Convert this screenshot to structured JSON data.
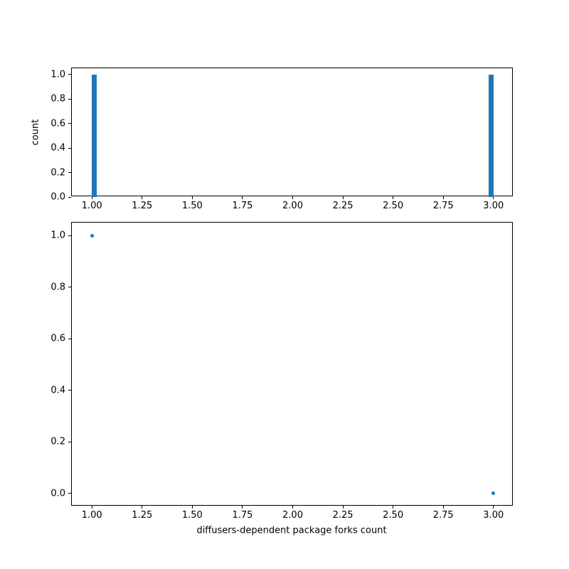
{
  "figure": {
    "background": "#ffffff",
    "accent_color": "#1f77b4"
  },
  "chart_data": [
    {
      "type": "bar",
      "title": "",
      "xlabel": "",
      "ylabel": "count",
      "xlim": [
        0.9,
        3.1
      ],
      "ylim": [
        0,
        1.05
      ],
      "grid": false,
      "legend": null,
      "xticks": [
        1.0,
        1.25,
        1.5,
        1.75,
        2.0,
        2.25,
        2.5,
        2.75,
        3.0
      ],
      "xtick_labels": [
        "1.00",
        "1.25",
        "1.50",
        "1.75",
        "2.00",
        "2.25",
        "2.50",
        "2.75",
        "3.00"
      ],
      "yticks": [
        0.0,
        0.2,
        0.4,
        0.6,
        0.8,
        1.0
      ],
      "ytick_labels": [
        "0.0",
        "0.2",
        "0.4",
        "0.6",
        "0.8",
        "1.0"
      ],
      "categories": [
        1.0,
        3.0
      ],
      "values": [
        1.0,
        1.0
      ],
      "bars": [
        {
          "x0": 1.0,
          "x1": 1.025,
          "height": 1.0
        },
        {
          "x0": 2.975,
          "x1": 3.0,
          "height": 1.0
        }
      ],
      "bar_color": "#1f77b4"
    },
    {
      "type": "scatter",
      "title": "",
      "xlabel": "diffusers-dependent package forks count",
      "ylabel": "",
      "xlim": [
        0.9,
        3.1
      ],
      "ylim": [
        -0.05,
        1.05
      ],
      "grid": false,
      "legend": null,
      "xticks": [
        1.0,
        1.25,
        1.5,
        1.75,
        2.0,
        2.25,
        2.5,
        2.75,
        3.0
      ],
      "xtick_labels": [
        "1.00",
        "1.25",
        "1.50",
        "1.75",
        "2.00",
        "2.25",
        "2.50",
        "2.75",
        "3.00"
      ],
      "yticks": [
        0.0,
        0.2,
        0.4,
        0.6,
        0.8,
        1.0
      ],
      "ytick_labels": [
        "0.0",
        "0.2",
        "0.4",
        "0.6",
        "0.8",
        "1.0"
      ],
      "points": [
        {
          "x": 1.0,
          "y": 1.0
        },
        {
          "x": 3.0,
          "y": 0.0
        }
      ],
      "marker_color": "#1f77b4",
      "marker_size_px": 5
    }
  ]
}
